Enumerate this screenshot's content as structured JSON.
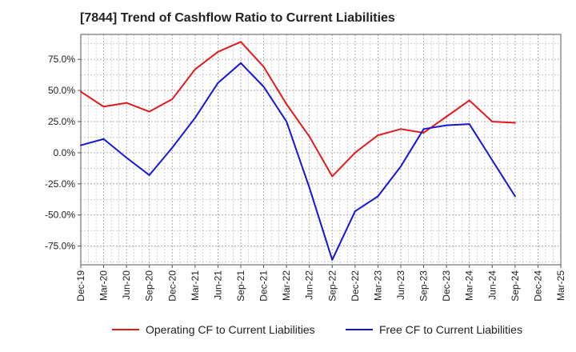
{
  "chart_data": {
    "type": "line",
    "title": "[7844]  Trend of Cashflow Ratio to Current Liabilities",
    "xlabel": "",
    "ylabel": "",
    "ylim": [
      -90,
      95
    ],
    "y_ticks": [
      -75,
      -50,
      -25,
      0,
      25,
      50,
      75
    ],
    "y_tick_labels": [
      "-75.0%",
      "-50.0%",
      "-25.0%",
      "0.0%",
      "25.0%",
      "50.0%",
      "75.0%"
    ],
    "x": [
      "Dec-19",
      "Mar-20",
      "Jun-20",
      "Sep-20",
      "Dec-20",
      "Mar-21",
      "Jun-21",
      "Sep-21",
      "Dec-21",
      "Mar-22",
      "Jun-22",
      "Sep-22",
      "Dec-22",
      "Mar-23",
      "Jun-23",
      "Sep-23",
      "Dec-23",
      "Mar-24",
      "Jun-24",
      "Sep-24"
    ],
    "x_tick_labels": [
      "Dec-19",
      "Mar-20",
      "Jun-20",
      "Sep-20",
      "Dec-20",
      "Mar-21",
      "Jun-21",
      "Sep-21",
      "Dec-21",
      "Mar-22",
      "Jun-22",
      "Sep-22",
      "Dec-22",
      "Mar-23",
      "Jun-23",
      "Sep-23",
      "Dec-23",
      "Mar-24",
      "Jun-24",
      "Sep-24",
      "Dec-24",
      "Mar-25"
    ],
    "x_count": 22,
    "grid": true,
    "legend_position": "bottom",
    "series": [
      {
        "name": "Operating CF to Current Liabilities",
        "color": "#e31a1c",
        "values": [
          49,
          37,
          40,
          33,
          43,
          67,
          81,
          89,
          69,
          39,
          13,
          -19,
          0,
          14,
          19,
          16,
          29,
          42,
          25,
          24
        ]
      },
      {
        "name": "Free CF to Current Liabilities",
        "color": "#1515d8",
        "values": [
          6,
          11,
          -4,
          -18,
          4,
          28,
          56,
          72,
          53,
          25,
          -28,
          -86,
          -47,
          -35,
          -11,
          19,
          22,
          23,
          -6,
          -35
        ]
      }
    ]
  }
}
